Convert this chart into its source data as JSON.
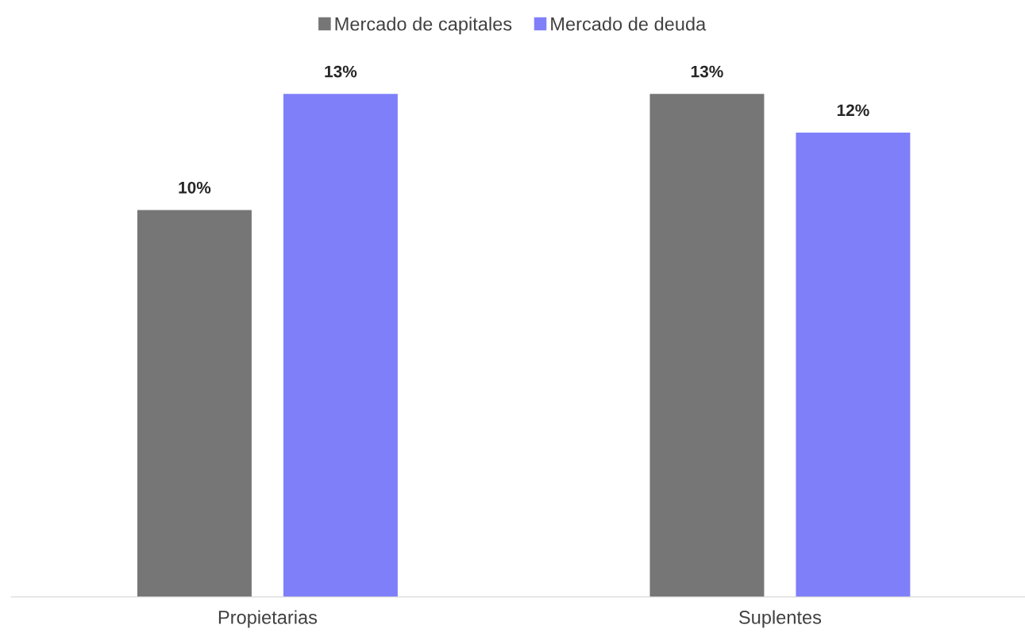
{
  "chart_data": {
    "type": "bar",
    "categories": [
      "Propietarias",
      "Suplentes"
    ],
    "series": [
      {
        "name": "Mercado de capitales",
        "color": "#767676",
        "values": [
          10,
          13
        ],
        "value_labels": [
          "10%",
          "13%"
        ]
      },
      {
        "name": "Mercado de deuda",
        "color": "#7f7ffa",
        "values": [
          13,
          12
        ],
        "value_labels": [
          "13%",
          "12%"
        ]
      }
    ],
    "legend": "top",
    "grid": false
  }
}
